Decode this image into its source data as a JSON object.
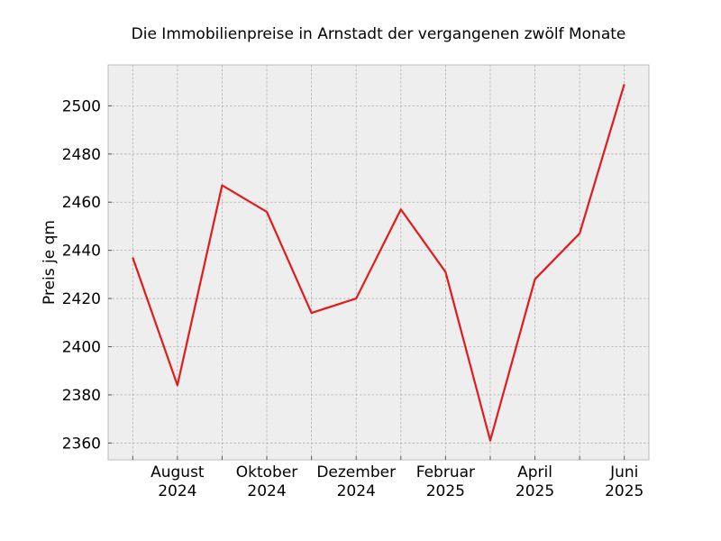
{
  "chart_data": {
    "type": "line",
    "title": "Die Immobilienpreise in Arnstadt der vergangenen zwölf Monate",
    "xlabel": "",
    "ylabel": "Preis je qm",
    "x": [
      "2024-07",
      "2024-08",
      "2024-09",
      "2024-10",
      "2024-11",
      "2024-12",
      "2025-01",
      "2025-02",
      "2025-03",
      "2025-04",
      "2025-05",
      "2025-06"
    ],
    "series": [
      {
        "values": [
          2437,
          2384,
          2467,
          2456,
          2414,
          2420,
          2457,
          2431,
          2361,
          2428,
          2447,
          2509
        ],
        "color": "#e31a1c"
      }
    ],
    "ylim": [
      2353,
      2517
    ],
    "yticks": [
      2360,
      2380,
      2400,
      2420,
      2440,
      2460,
      2480,
      2500
    ],
    "xtick_labels": [
      {
        "x": "2024-08",
        "line1": "August",
        "line2": "2024"
      },
      {
        "x": "2024-10",
        "line1": "Oktober",
        "line2": "2024"
      },
      {
        "x": "2024-12",
        "line1": "Dezember",
        "line2": "2024"
      },
      {
        "x": "2025-02",
        "line1": "Februar",
        "line2": "2025"
      },
      {
        "x": "2025-04",
        "line1": "April",
        "line2": "2025"
      },
      {
        "x": "2025-06",
        "line1": "Juni",
        "line2": "2025"
      }
    ],
    "grid": true,
    "background_color": "#eeeeee"
  }
}
